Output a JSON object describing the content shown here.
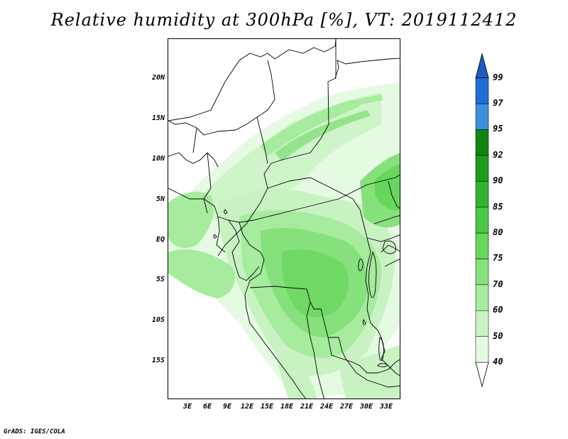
{
  "title": "Relative humidity at 300hPa [%], VT: 2019112412",
  "footer": "GrADS: IGES/COLA",
  "map": {
    "lat_ticks": [
      "20N",
      "15N",
      "10N",
      "5N",
      "EQ",
      "5S",
      "10S",
      "15S"
    ],
    "lon_ticks": [
      "3E",
      "6E",
      "9E",
      "12E",
      "15E",
      "18E",
      "21E",
      "24E",
      "27E",
      "30E",
      "33E"
    ]
  },
  "colorbar": {
    "levels": [
      "40",
      "50",
      "60",
      "70",
      "75",
      "80",
      "85",
      "90",
      "92",
      "95",
      "97",
      "99"
    ],
    "colors": [
      "#ffffff",
      "#e6f9e3",
      "#c9f2c3",
      "#a6eb9e",
      "#86e07c",
      "#66d65c",
      "#4bc845",
      "#32b432",
      "#1e9b1e",
      "#0f870f",
      "#3d8fe0",
      "#1e6ed6",
      "#1a5cc0"
    ]
  }
}
